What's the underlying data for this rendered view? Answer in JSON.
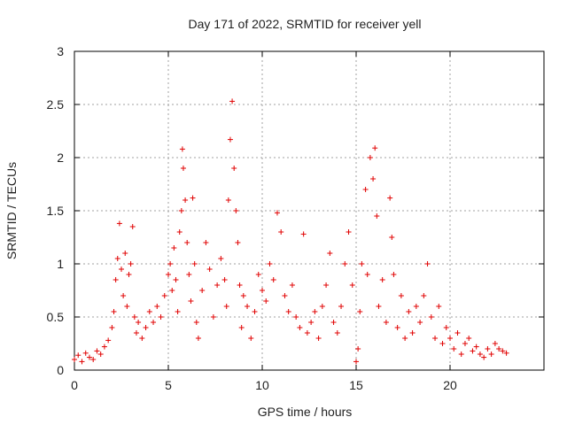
{
  "chart_data": {
    "type": "scatter",
    "title": "Day 171 of 2022, SRMTID for receiver yell",
    "xlabel": "GPS time / hours",
    "ylabel": "SRMTID / TECUs",
    "xlim": [
      0,
      25
    ],
    "ylim": [
      0,
      3
    ],
    "xticks": [
      "0",
      "5",
      "10",
      "15",
      "20"
    ],
    "xtick_values": [
      0,
      5,
      10,
      15,
      20
    ],
    "yticks": [
      "0",
      "0.5",
      "1",
      "1.5",
      "2",
      "2.5",
      "3"
    ],
    "ytick_values": [
      0,
      0.5,
      1,
      1.5,
      2,
      2.5,
      3
    ],
    "grid": true,
    "marker": "+",
    "color": "#e00000",
    "series": [
      {
        "name": "SRMTID",
        "points": [
          [
            0.0,
            0.1
          ],
          [
            0.2,
            0.14
          ],
          [
            0.4,
            0.08
          ],
          [
            0.6,
            0.16
          ],
          [
            0.8,
            0.12
          ],
          [
            1.0,
            0.1
          ],
          [
            1.2,
            0.18
          ],
          [
            1.4,
            0.15
          ],
          [
            1.6,
            0.22
          ],
          [
            1.8,
            0.28
          ],
          [
            2.0,
            0.4
          ],
          [
            2.1,
            0.55
          ],
          [
            2.2,
            0.85
          ],
          [
            2.3,
            1.05
          ],
          [
            2.4,
            1.38
          ],
          [
            2.5,
            0.95
          ],
          [
            2.6,
            0.7
          ],
          [
            2.7,
            1.1
          ],
          [
            2.8,
            0.6
          ],
          [
            2.9,
            0.9
          ],
          [
            3.0,
            1.0
          ],
          [
            3.1,
            1.35
          ],
          [
            3.2,
            0.5
          ],
          [
            3.3,
            0.35
          ],
          [
            3.4,
            0.45
          ],
          [
            3.6,
            0.3
          ],
          [
            3.8,
            0.4
          ],
          [
            4.0,
            0.55
          ],
          [
            4.2,
            0.45
          ],
          [
            4.4,
            0.6
          ],
          [
            4.6,
            0.5
          ],
          [
            4.8,
            0.7
          ],
          [
            5.0,
            0.9
          ],
          [
            5.1,
            1.0
          ],
          [
            5.2,
            0.75
          ],
          [
            5.3,
            1.15
          ],
          [
            5.4,
            0.85
          ],
          [
            5.5,
            0.55
          ],
          [
            5.6,
            1.3
          ],
          [
            5.7,
            1.5
          ],
          [
            5.75,
            2.08
          ],
          [
            5.8,
            1.9
          ],
          [
            5.9,
            1.6
          ],
          [
            6.0,
            1.2
          ],
          [
            6.1,
            0.9
          ],
          [
            6.2,
            0.65
          ],
          [
            6.3,
            1.62
          ],
          [
            6.4,
            1.0
          ],
          [
            6.5,
            0.45
          ],
          [
            6.6,
            0.3
          ],
          [
            6.8,
            0.75
          ],
          [
            7.0,
            1.2
          ],
          [
            7.2,
            0.95
          ],
          [
            7.4,
            0.5
          ],
          [
            7.6,
            0.8
          ],
          [
            7.8,
            1.05
          ],
          [
            8.0,
            0.85
          ],
          [
            8.1,
            0.6
          ],
          [
            8.2,
            1.6
          ],
          [
            8.3,
            2.17
          ],
          [
            8.4,
            2.53
          ],
          [
            8.5,
            1.9
          ],
          [
            8.6,
            1.5
          ],
          [
            8.7,
            1.2
          ],
          [
            8.8,
            0.8
          ],
          [
            8.9,
            0.4
          ],
          [
            9.0,
            0.7
          ],
          [
            9.2,
            0.6
          ],
          [
            9.4,
            0.3
          ],
          [
            9.6,
            0.55
          ],
          [
            9.8,
            0.9
          ],
          [
            10.0,
            0.75
          ],
          [
            10.2,
            0.65
          ],
          [
            10.4,
            1.0
          ],
          [
            10.6,
            0.85
          ],
          [
            10.8,
            1.48
          ],
          [
            11.0,
            1.3
          ],
          [
            11.2,
            0.7
          ],
          [
            11.4,
            0.55
          ],
          [
            11.6,
            0.8
          ],
          [
            11.8,
            0.5
          ],
          [
            12.0,
            0.4
          ],
          [
            12.2,
            1.28
          ],
          [
            12.4,
            0.35
          ],
          [
            12.6,
            0.45
          ],
          [
            12.8,
            0.55
          ],
          [
            13.0,
            0.3
          ],
          [
            13.2,
            0.6
          ],
          [
            13.4,
            0.8
          ],
          [
            13.6,
            1.1
          ],
          [
            13.8,
            0.45
          ],
          [
            14.0,
            0.35
          ],
          [
            14.2,
            0.6
          ],
          [
            14.4,
            1.0
          ],
          [
            14.6,
            1.3
          ],
          [
            14.8,
            0.8
          ],
          [
            15.0,
            0.08
          ],
          [
            15.1,
            0.2
          ],
          [
            15.2,
            0.55
          ],
          [
            15.3,
            1.0
          ],
          [
            15.5,
            1.7
          ],
          [
            15.6,
            0.9
          ],
          [
            15.75,
            2.0
          ],
          [
            15.9,
            1.8
          ],
          [
            16.0,
            2.09
          ],
          [
            16.1,
            1.45
          ],
          [
            16.2,
            0.6
          ],
          [
            16.4,
            0.85
          ],
          [
            16.6,
            0.45
          ],
          [
            16.8,
            1.62
          ],
          [
            16.9,
            1.25
          ],
          [
            17.0,
            0.9
          ],
          [
            17.2,
            0.4
          ],
          [
            17.4,
            0.7
          ],
          [
            17.6,
            0.3
          ],
          [
            17.8,
            0.55
          ],
          [
            18.0,
            0.35
          ],
          [
            18.2,
            0.6
          ],
          [
            18.4,
            0.45
          ],
          [
            18.6,
            0.7
          ],
          [
            18.8,
            1.0
          ],
          [
            19.0,
            0.5
          ],
          [
            19.2,
            0.3
          ],
          [
            19.4,
            0.6
          ],
          [
            19.6,
            0.25
          ],
          [
            19.8,
            0.4
          ],
          [
            20.0,
            0.3
          ],
          [
            20.2,
            0.2
          ],
          [
            20.4,
            0.35
          ],
          [
            20.6,
            0.15
          ],
          [
            20.8,
            0.25
          ],
          [
            21.0,
            0.3
          ],
          [
            21.2,
            0.18
          ],
          [
            21.4,
            0.22
          ],
          [
            21.6,
            0.15
          ],
          [
            21.8,
            0.12
          ],
          [
            22.0,
            0.2
          ],
          [
            22.2,
            0.15
          ],
          [
            22.4,
            0.25
          ],
          [
            22.6,
            0.2
          ],
          [
            22.8,
            0.18
          ],
          [
            23.0,
            0.16
          ]
        ]
      }
    ]
  }
}
